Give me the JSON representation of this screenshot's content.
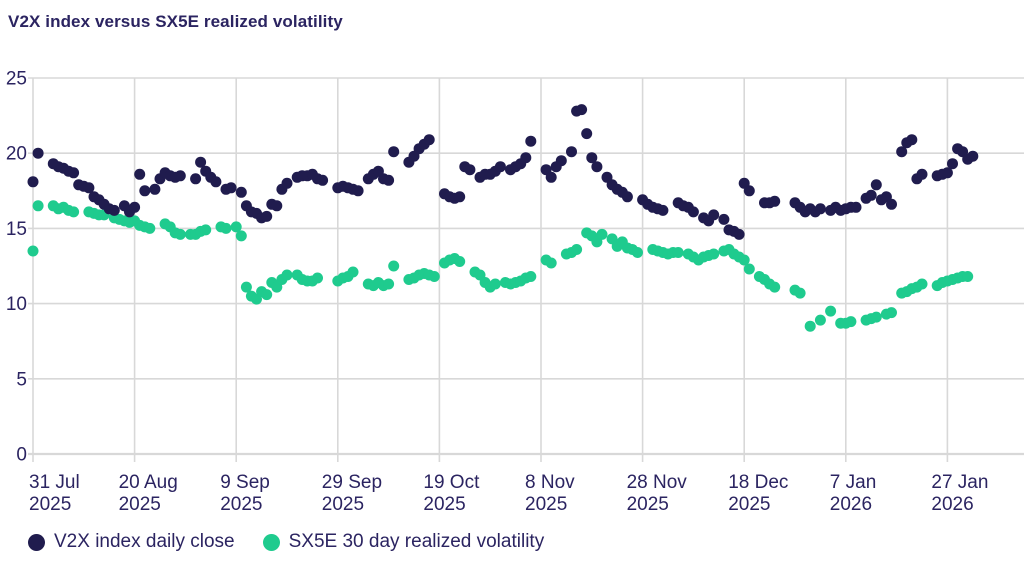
{
  "header": {
    "title": "V2X index versus SX5E realized volatility"
  },
  "chart_data": {
    "type": "scatter",
    "title": "V2X index versus SX5E realized volatility",
    "xlabel": "",
    "ylabel": "",
    "grid": true,
    "legend_position": "bottom-left",
    "x_unit": "trading-day offset from 31 Jul 2025",
    "colors": {
      "v2x": "#201c4e",
      "sx5e": "#1fcb8e",
      "grid": "#d8d8d8",
      "axis": "#d2d2d2",
      "text": "#2b2461",
      "background": "#ffffff"
    },
    "y_axis": {
      "ticks": [
        0,
        5,
        10,
        15,
        20,
        25
      ],
      "range": [
        0,
        25
      ]
    },
    "x_axis": {
      "ticks": [
        {
          "day": 0,
          "l1": "31 Jul",
          "l2": "2025"
        },
        {
          "day": 20,
          "l1": "20 Aug",
          "l2": "2025"
        },
        {
          "day": 40,
          "l1": "9 Sep",
          "l2": "2025"
        },
        {
          "day": 60,
          "l1": "29 Sep",
          "l2": "2025"
        },
        {
          "day": 80,
          "l1": "19 Oct",
          "l2": "2025"
        },
        {
          "day": 100,
          "l1": "8 Nov",
          "l2": "2025"
        },
        {
          "day": 120,
          "l1": "28 Nov",
          "l2": "2025"
        },
        {
          "day": 140,
          "l1": "18 Dec",
          "l2": "2025"
        },
        {
          "day": 160,
          "l1": "7 Jan",
          "l2": "2026"
        },
        {
          "day": 180,
          "l1": "27 Jan",
          "l2": "2026"
        }
      ]
    },
    "series": [
      {
        "id": "v2x",
        "name": "V2X index daily close",
        "color": "#201c4e",
        "points": [
          [
            0,
            18.1
          ],
          [
            1,
            20
          ],
          [
            4,
            19.3
          ],
          [
            5,
            19.1
          ],
          [
            6,
            19
          ],
          [
            7,
            18.8
          ],
          [
            8,
            18.7
          ],
          [
            9,
            17.9
          ],
          [
            10,
            17.8
          ],
          [
            11,
            17.7
          ],
          [
            12,
            17.1
          ],
          [
            13,
            16.9
          ],
          [
            14,
            16.6
          ],
          [
            15,
            16.3
          ],
          [
            16,
            16.2
          ],
          [
            18,
            16.5
          ],
          [
            19,
            16.1
          ],
          [
            20,
            16.4
          ],
          [
            21,
            18.6
          ],
          [
            22,
            17.5
          ],
          [
            24,
            17.6
          ],
          [
            25,
            18.3
          ],
          [
            26,
            18.7
          ],
          [
            27,
            18.5
          ],
          [
            28,
            18.4
          ],
          [
            29,
            18.5
          ],
          [
            32,
            18.3
          ],
          [
            33,
            19.4
          ],
          [
            34,
            18.8
          ],
          [
            35,
            18.4
          ],
          [
            36,
            18.1
          ],
          [
            38,
            17.6
          ],
          [
            39,
            17.7
          ],
          [
            41,
            17.4
          ],
          [
            42,
            16.5
          ],
          [
            43,
            16.1
          ],
          [
            44,
            16
          ],
          [
            45,
            15.7
          ],
          [
            46,
            15.8
          ],
          [
            47,
            16.6
          ],
          [
            48,
            16.5
          ],
          [
            49,
            17.6
          ],
          [
            50,
            18
          ],
          [
            52,
            18.4
          ],
          [
            53,
            18.5
          ],
          [
            54,
            18.5
          ],
          [
            55,
            18.6
          ],
          [
            56,
            18.3
          ],
          [
            57,
            18.2
          ],
          [
            60,
            17.7
          ],
          [
            61,
            17.8
          ],
          [
            62,
            17.7
          ],
          [
            63,
            17.6
          ],
          [
            64,
            17.5
          ],
          [
            66,
            18.3
          ],
          [
            67,
            18.6
          ],
          [
            68,
            18.8
          ],
          [
            69,
            18.3
          ],
          [
            70,
            18.2
          ],
          [
            71,
            20.1
          ],
          [
            74,
            19.4
          ],
          [
            75,
            19.8
          ],
          [
            76,
            20.3
          ],
          [
            77,
            20.6
          ],
          [
            78,
            20.9
          ],
          [
            81,
            17.3
          ],
          [
            82,
            17.1
          ],
          [
            83,
            17
          ],
          [
            84,
            17.1
          ],
          [
            85,
            19.1
          ],
          [
            86,
            18.9
          ],
          [
            88,
            18.4
          ],
          [
            89,
            18.6
          ],
          [
            90,
            18.6
          ],
          [
            91,
            18.8
          ],
          [
            92,
            19.1
          ],
          [
            94,
            18.9
          ],
          [
            95,
            19.1
          ],
          [
            96,
            19.3
          ],
          [
            97,
            19.7
          ],
          [
            98,
            20.8
          ],
          [
            101,
            18.9
          ],
          [
            102,
            18.4
          ],
          [
            103,
            19.1
          ],
          [
            104,
            19.5
          ],
          [
            106,
            20.1
          ],
          [
            107,
            22.8
          ],
          [
            108,
            22.9
          ],
          [
            109,
            21.3
          ],
          [
            110,
            19.7
          ],
          [
            111,
            19.1
          ],
          [
            113,
            18.4
          ],
          [
            114,
            17.9
          ],
          [
            115,
            17.6
          ],
          [
            116,
            17.4
          ],
          [
            117,
            17.1
          ],
          [
            120,
            16.9
          ],
          [
            121,
            16.6
          ],
          [
            122,
            16.4
          ],
          [
            123,
            16.3
          ],
          [
            124,
            16.2
          ],
          [
            127,
            16.7
          ],
          [
            128,
            16.5
          ],
          [
            129,
            16.4
          ],
          [
            130,
            16.1
          ],
          [
            132,
            15.7
          ],
          [
            133,
            15.5
          ],
          [
            134,
            15.9
          ],
          [
            136,
            15.6
          ],
          [
            137,
            14.9
          ],
          [
            138,
            14.8
          ],
          [
            139,
            14.6
          ],
          [
            140,
            18
          ],
          [
            141,
            17.5
          ],
          [
            144,
            16.7
          ],
          [
            145,
            16.7
          ],
          [
            146,
            16.8
          ],
          [
            150,
            16.7
          ],
          [
            151,
            16.4
          ],
          [
            152,
            16.1
          ],
          [
            153,
            16.3
          ],
          [
            154,
            16.1
          ],
          [
            155,
            16.3
          ],
          [
            157,
            16.2
          ],
          [
            158,
            16.4
          ],
          [
            159,
            16.2
          ],
          [
            160,
            16.3
          ],
          [
            161,
            16.4
          ],
          [
            162,
            16.4
          ],
          [
            164,
            17
          ],
          [
            165,
            17.2
          ],
          [
            166,
            17.9
          ],
          [
            167,
            16.9
          ],
          [
            168,
            17.1
          ],
          [
            169,
            16.6
          ],
          [
            171,
            20.1
          ],
          [
            172,
            20.7
          ],
          [
            173,
            20.9
          ],
          [
            174,
            18.3
          ],
          [
            175,
            18.6
          ],
          [
            178,
            18.5
          ],
          [
            179,
            18.6
          ],
          [
            180,
            18.7
          ],
          [
            181,
            19.3
          ],
          [
            182,
            20.3
          ],
          [
            183,
            20.1
          ],
          [
            184,
            19.6
          ],
          [
            185,
            19.8
          ]
        ]
      },
      {
        "id": "sx5e",
        "name": "SX5E 30 day realized volatility",
        "color": "#1fcb8e",
        "points": [
          [
            0,
            13.5
          ],
          [
            1,
            16.5
          ],
          [
            4,
            16.5
          ],
          [
            5,
            16.3
          ],
          [
            6,
            16.4
          ],
          [
            7,
            16.2
          ],
          [
            8,
            16.1
          ],
          [
            11,
            16.1
          ],
          [
            12,
            16
          ],
          [
            13,
            15.9
          ],
          [
            14,
            15.9
          ],
          [
            16,
            15.7
          ],
          [
            17,
            15.6
          ],
          [
            18,
            15.5
          ],
          [
            19,
            15.4
          ],
          [
            20,
            15.5
          ],
          [
            21,
            15.2
          ],
          [
            22,
            15.1
          ],
          [
            23,
            15
          ],
          [
            26,
            15.3
          ],
          [
            27,
            15.1
          ],
          [
            28,
            14.7
          ],
          [
            29,
            14.6
          ],
          [
            31,
            14.6
          ],
          [
            32,
            14.6
          ],
          [
            33,
            14.8
          ],
          [
            34,
            14.9
          ],
          [
            37,
            15.1
          ],
          [
            38,
            15
          ],
          [
            40,
            15.1
          ],
          [
            41,
            14.5
          ],
          [
            42,
            11.1
          ],
          [
            43,
            10.5
          ],
          [
            44,
            10.3
          ],
          [
            45,
            10.8
          ],
          [
            46,
            10.6
          ],
          [
            47,
            11.4
          ],
          [
            48,
            11.1
          ],
          [
            49,
            11.6
          ],
          [
            50,
            11.9
          ],
          [
            52,
            11.9
          ],
          [
            53,
            11.6
          ],
          [
            54,
            11.5
          ],
          [
            55,
            11.5
          ],
          [
            56,
            11.7
          ],
          [
            60,
            11.5
          ],
          [
            61,
            11.7
          ],
          [
            62,
            11.8
          ],
          [
            63,
            12.1
          ],
          [
            66,
            11.3
          ],
          [
            67,
            11.2
          ],
          [
            68,
            11.4
          ],
          [
            69,
            11.2
          ],
          [
            70,
            11.3
          ],
          [
            71,
            12.5
          ],
          [
            74,
            11.6
          ],
          [
            75,
            11.7
          ],
          [
            76,
            11.9
          ],
          [
            77,
            12
          ],
          [
            78,
            11.9
          ],
          [
            79,
            11.8
          ],
          [
            81,
            12.7
          ],
          [
            82,
            12.9
          ],
          [
            83,
            13
          ],
          [
            84,
            12.8
          ],
          [
            87,
            12.1
          ],
          [
            88,
            11.9
          ],
          [
            89,
            11.4
          ],
          [
            90,
            11.1
          ],
          [
            91,
            11.3
          ],
          [
            93,
            11.4
          ],
          [
            94,
            11.3
          ],
          [
            95,
            11.4
          ],
          [
            96,
            11.5
          ],
          [
            97,
            11.7
          ],
          [
            98,
            11.8
          ],
          [
            101,
            12.9
          ],
          [
            102,
            12.7
          ],
          [
            105,
            13.3
          ],
          [
            106,
            13.4
          ],
          [
            107,
            13.6
          ],
          [
            109,
            14.7
          ],
          [
            110,
            14.5
          ],
          [
            111,
            14.1
          ],
          [
            112,
            14.6
          ],
          [
            114,
            14.3
          ],
          [
            115,
            13.8
          ],
          [
            116,
            14.1
          ],
          [
            117,
            13.7
          ],
          [
            118,
            13.6
          ],
          [
            119,
            13.4
          ],
          [
            122,
            13.6
          ],
          [
            123,
            13.5
          ],
          [
            124,
            13.4
          ],
          [
            125,
            13.3
          ],
          [
            126,
            13.4
          ],
          [
            127,
            13.4
          ],
          [
            129,
            13.3
          ],
          [
            130,
            13.1
          ],
          [
            131,
            12.9
          ],
          [
            132,
            13.1
          ],
          [
            133,
            13.2
          ],
          [
            134,
            13.3
          ],
          [
            136,
            13.5
          ],
          [
            137,
            13.6
          ],
          [
            138,
            13.3
          ],
          [
            139,
            13.1
          ],
          [
            140,
            12.9
          ],
          [
            141,
            12.3
          ],
          [
            143,
            11.8
          ],
          [
            144,
            11.6
          ],
          [
            145,
            11.3
          ],
          [
            146,
            11.1
          ],
          [
            150,
            10.9
          ],
          [
            151,
            10.7
          ],
          [
            153,
            8.5
          ],
          [
            155,
            8.9
          ],
          [
            157,
            9.5
          ],
          [
            159,
            8.7
          ],
          [
            160,
            8.7
          ],
          [
            161,
            8.8
          ],
          [
            164,
            8.9
          ],
          [
            165,
            9
          ],
          [
            166,
            9.1
          ],
          [
            168,
            9.3
          ],
          [
            169,
            9.4
          ],
          [
            171,
            10.7
          ],
          [
            172,
            10.8
          ],
          [
            173,
            11
          ],
          [
            174,
            11.1
          ],
          [
            175,
            11.3
          ],
          [
            178,
            11.2
          ],
          [
            179,
            11.4
          ],
          [
            180,
            11.5
          ],
          [
            181,
            11.6
          ],
          [
            182,
            11.7
          ],
          [
            183,
            11.8
          ],
          [
            184,
            11.8
          ]
        ]
      }
    ]
  }
}
